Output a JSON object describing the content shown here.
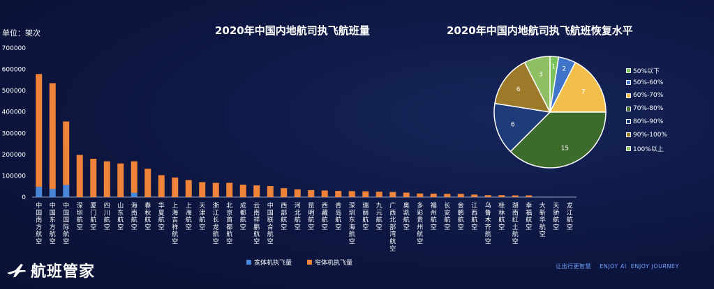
{
  "chart_data": [
    {
      "type": "bar",
      "stacked": true,
      "title": "2020年中国内地航司执飞航班量",
      "unit_label": "单位：架次",
      "ylim": [
        0,
        700000
      ],
      "yticks": [
        0,
        100000,
        200000,
        300000,
        400000,
        500000,
        600000,
        700000
      ],
      "grid": false,
      "legend_position": "bottom",
      "categories": [
        "中国南方航空",
        "中国东方航空",
        "中国国际航空",
        "深圳航空",
        "厦门航空",
        "四川航空",
        "山东航空",
        "海南航空",
        "春秋航空",
        "华夏航空",
        "上海吉祥航空",
        "上海航空",
        "天津航空",
        "浙江长龙航空",
        "北京首都航空",
        "成都航空",
        "云南祥鹏航空",
        "中国联合航空",
        "西部航空",
        "河北航空",
        "昆明航空",
        "西藏航空",
        "青岛航空",
        "深圳东海航空",
        "瑞丽航空",
        "九元航空",
        "广西北部湾航空",
        "奥凯航空",
        "多彩贵州航空",
        "福州航空",
        "长安航空",
        "金鹏航空",
        "江西航空",
        "乌鲁木齐航空",
        "桂林航空",
        "湖南红土航空",
        "幸福航空",
        "大新华航空",
        "天骄航空",
        "龙江航空"
      ],
      "series": [
        {
          "name": "宽体机执飞量",
          "color": "#4a86d8",
          "values": [
            48000,
            38000,
            57000,
            0,
            0,
            0,
            0,
            20000,
            0,
            0,
            0,
            0,
            0,
            0,
            0,
            0,
            0,
            0,
            0,
            0,
            0,
            0,
            0,
            0,
            0,
            0,
            0,
            0,
            0,
            0,
            0,
            0,
            0,
            0,
            0,
            0,
            0,
            0,
            0,
            0
          ]
        },
        {
          "name": "窄体机执飞量",
          "color": "#f0833a",
          "values": [
            530000,
            497000,
            298000,
            198000,
            180000,
            168000,
            158000,
            148000,
            133000,
            103000,
            92000,
            80000,
            70000,
            67000,
            67000,
            58000,
            55000,
            52000,
            42000,
            36000,
            33000,
            31000,
            29000,
            28000,
            27000,
            25000,
            24000,
            21000,
            17000,
            16000,
            15000,
            15000,
            12000,
            9000,
            9000,
            8000,
            8000,
            0,
            0,
            0
          ]
        }
      ]
    },
    {
      "type": "pie",
      "title": "2020年中国内地航司执飞航班恢复水平",
      "categories": [
        "50%以下",
        "50%-60%",
        "60%-70%",
        "70%-80%",
        "80%-90%",
        "90%-100%",
        "100%以上"
      ],
      "values": [
        1,
        2,
        7,
        15,
        6,
        6,
        3
      ],
      "colors": [
        "#7cc25a",
        "#3f74c9",
        "#f2c04a",
        "#3d6b2c",
        "#1f3c7a",
        "#9c7a2a",
        "#8fbf62"
      ],
      "legend_position": "right"
    }
  ]
}
